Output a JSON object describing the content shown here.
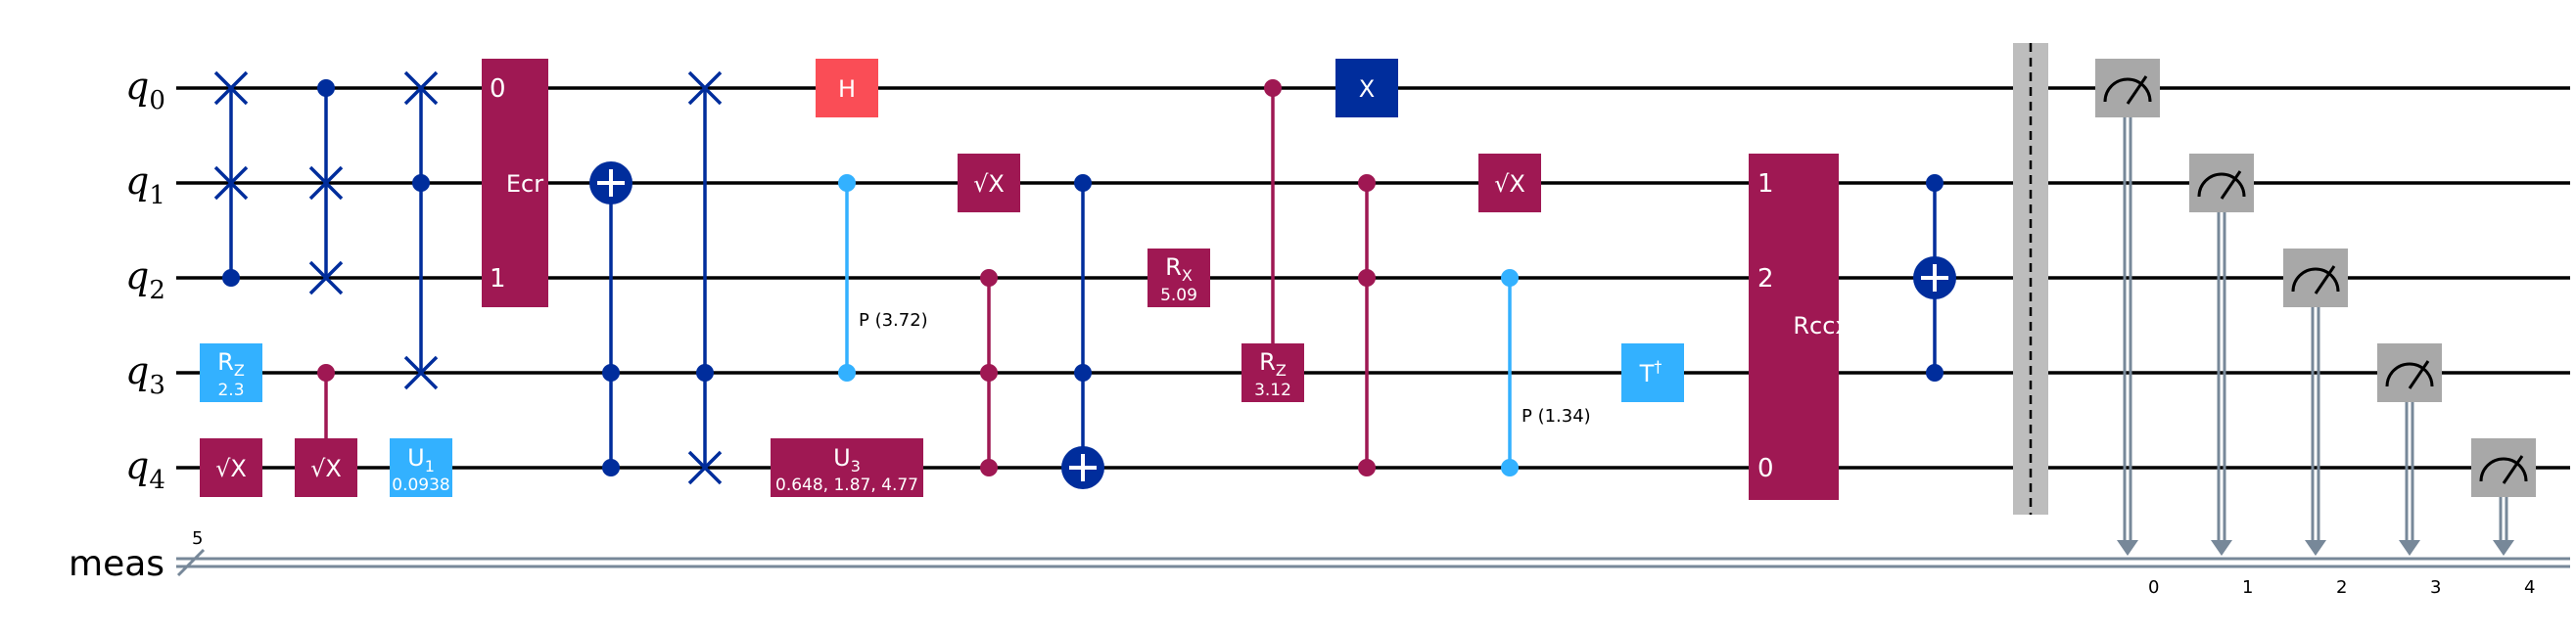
{
  "registers": {
    "qubits": [
      {
        "name": "q",
        "index": "0"
      },
      {
        "name": "q",
        "index": "1"
      },
      {
        "name": "q",
        "index": "2"
      },
      {
        "name": "q",
        "index": "3"
      },
      {
        "name": "q",
        "index": "4"
      }
    ],
    "classical": {
      "name": "meas",
      "size": "5",
      "bits": [
        "0",
        "1",
        "2",
        "3",
        "4"
      ]
    }
  },
  "gates": {
    "rz_q3": {
      "label": "R",
      "sub": "Z",
      "param": "2.3"
    },
    "sx_q4_a": {
      "label": "√X"
    },
    "csx_target": {
      "label": "√X"
    },
    "u1": {
      "label": "U",
      "sub": "1",
      "param": "0.0938"
    },
    "ecr": {
      "label": "Ecr",
      "port0": "0",
      "port1": "1"
    },
    "h_q0": {
      "label": "H"
    },
    "cp_a": {
      "label": "P (3.72)"
    },
    "u3": {
      "label": "U",
      "sub": "3",
      "param": "0.648, 1.87, 4.77"
    },
    "sx_q1_a": {
      "label": "√X"
    },
    "rx_q2": {
      "label": "R",
      "sub": "X",
      "param": "5.09"
    },
    "crz": {
      "label": "R",
      "sub": "Z",
      "param": "3.12"
    },
    "x_q0": {
      "label": "X"
    },
    "sx_q1_b": {
      "label": "√X"
    },
    "cp_b": {
      "label": "P (1.34)"
    },
    "tdg": {
      "label": "T",
      "sup": "†"
    },
    "rccx": {
      "label": "Rccx",
      "port0": "1",
      "port1": "2",
      "port2": "0"
    }
  },
  "colors": {
    "blue_dark": "#002d9c",
    "blue_light": "#33b1ff",
    "magenta": "#9f1853",
    "red": "#fa4d56",
    "gray": "#a8a8a8",
    "barrier": "#bdbdbd",
    "classical": "#778899"
  }
}
